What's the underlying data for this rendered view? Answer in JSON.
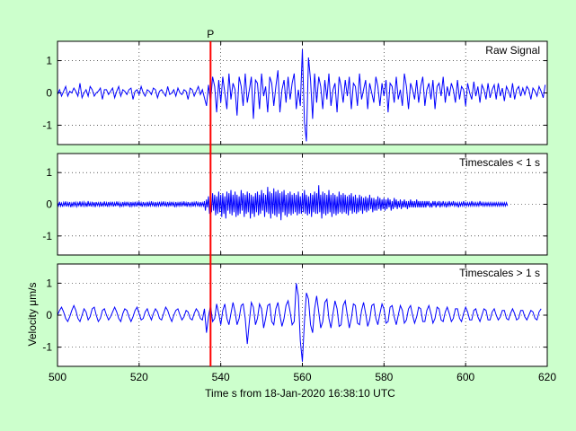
{
  "chart_data": {
    "type": "line",
    "figure_background": "#ccffcc",
    "trace_color": "#0000ff",
    "pick_color": "#ff0000",
    "grid": "dotted",
    "x_range": [
      500,
      620
    ],
    "x_ticks": [
      500,
      520,
      540,
      560,
      580,
      600,
      620
    ],
    "xlabel": "Time s from 18-Jan-2020 16:38:10 UTC",
    "ylabel": "Velocity μm/s",
    "pick": {
      "label": "P",
      "time": 537.5
    },
    "panels": [
      {
        "title": "Raw Signal",
        "y_range": [
          -1.6,
          1.6
        ],
        "y_ticks": [
          -1,
          0,
          1
        ],
        "sample_interval_s": 0.5,
        "series": [
          {
            "values": [
              -0.05,
              0.1,
              -0.1,
              0.05,
              0.2,
              -0.1,
              0.05,
              0.0,
              0.15,
              0.05,
              -0.1,
              0.3,
              -0.15,
              0.0,
              0.1,
              -0.1,
              0.2,
              0.1,
              -0.1,
              0.0,
              0.05,
              0.15,
              -0.2,
              0.1,
              0.1,
              -0.05,
              0.05,
              0.15,
              -0.15,
              0.05,
              0.2,
              -0.1,
              0.1,
              0.05,
              -0.05,
              0.1,
              0.15,
              -0.2,
              0.05,
              0.1,
              -0.05,
              0.2,
              0.0,
              -0.1,
              0.1,
              0.05,
              -0.05,
              0.15,
              0.1,
              -0.15,
              0.05,
              0.1,
              0.0,
              -0.1,
              0.2,
              -0.05,
              0.0,
              0.1,
              -0.1,
              0.15,
              0.0,
              -0.05,
              0.1,
              0.05,
              -0.2,
              0.15,
              0.1,
              -0.1,
              0.05,
              0.2,
              -0.05,
              0.1,
              -0.15,
              -0.4,
              0.25,
              -0.3,
              0.5,
              0.2,
              -0.6,
              0.4,
              -0.3,
              0.5,
              0.0,
              -0.5,
              0.6,
              -0.2,
              0.3,
              0.1,
              -0.7,
              0.5,
              0.2,
              -0.4,
              0.6,
              -0.3,
              0.1,
              0.5,
              -0.8,
              0.4,
              0.3,
              -0.5,
              0.6,
              -0.1,
              0.2,
              -0.6,
              0.5,
              0.3,
              -0.4,
              0.2,
              0.7,
              -0.6,
              0.1,
              0.4,
              -0.3,
              0.5,
              -0.2,
              0.3,
              0.6,
              -0.5,
              0.1,
              -0.4,
              1.35,
              -0.9,
              -1.5,
              1.1,
              0.4,
              -0.8,
              0.6,
              -0.3,
              0.5,
              0.2,
              -0.5,
              0.4,
              -0.2,
              0.6,
              -0.4,
              0.1,
              0.3,
              -0.6,
              0.5,
              0.2,
              -0.3,
              0.4,
              -0.1,
              0.5,
              -0.5,
              0.3,
              0.2,
              -0.4,
              0.6,
              -0.2,
              0.1,
              0.4,
              -0.5,
              0.3,
              0.0,
              -0.3,
              0.5,
              0.2,
              -0.4,
              0.3,
              -0.1,
              0.4,
              -0.6,
              0.3,
              0.2,
              -0.3,
              0.5,
              -0.2,
              0.1,
              -0.4,
              0.6,
              0.2,
              -0.5,
              0.3,
              0.1,
              -0.2,
              0.4,
              -0.3,
              0.2,
              0.5,
              -0.4,
              0.1,
              0.3,
              -0.2,
              0.4,
              -0.5,
              0.2,
              0.3,
              -0.1,
              0.5,
              -0.3,
              0.2,
              -0.1,
              0.3,
              0.1,
              -0.3,
              0.4,
              -0.2,
              0.2,
              0.1,
              -0.4,
              0.3,
              0.0,
              -0.2,
              0.35,
              -0.1,
              0.2,
              -0.3,
              0.25,
              0.1,
              -0.2,
              0.3,
              -0.15,
              0.1,
              0.25,
              -0.2,
              0.3,
              -0.1,
              0.15,
              -0.25,
              0.2,
              0.05,
              -0.15,
              0.3,
              -0.2,
              0.1,
              0.2,
              -0.1,
              0.15,
              -0.05,
              0.2,
              0.1,
              -0.2,
              0.15,
              0.05,
              -0.1,
              0.2,
              0.05,
              -0.15,
              0.25
            ]
          }
        ]
      },
      {
        "title": "Timescales < 1 s",
        "y_range": [
          -1.6,
          1.6
        ],
        "y_ticks": [
          -1,
          0,
          1
        ],
        "sample_interval_s": 0.25,
        "series": [
          {
            "values": [
              0.05,
              -0.05,
              0.08,
              -0.06,
              0.04,
              -0.08,
              0.06,
              -0.04,
              0.09,
              -0.07,
              0.05,
              -0.05,
              0.07,
              -0.09,
              0.04,
              -0.06,
              0.08,
              -0.05,
              0.06,
              -0.07,
              0.05,
              -0.04,
              0.09,
              -0.08,
              0.06,
              -0.05,
              0.07,
              -0.06,
              0.04,
              -0.08,
              0.1,
              -0.06,
              0.05,
              -0.07,
              0.08,
              -0.05,
              0.06,
              -0.09,
              0.07,
              -0.04,
              0.05,
              -0.06,
              0.08,
              -0.07,
              0.04,
              -0.05,
              0.09,
              -0.06,
              0.05,
              -0.08,
              0.07,
              -0.05,
              0.06,
              -0.04,
              0.08,
              -0.07,
              0.05,
              -0.06,
              0.09,
              -0.05,
              0.06,
              -0.07,
              0.04,
              -0.08,
              0.07,
              -0.05,
              0.06,
              -0.06,
              0.08,
              -0.04,
              0.05,
              -0.09,
              0.07,
              -0.06,
              0.05,
              -0.05,
              0.08,
              -0.07,
              0.06,
              -0.04,
              0.09,
              -0.06,
              0.05,
              -0.08,
              0.07,
              -0.05,
              0.04,
              -0.06,
              0.08,
              -0.07,
              0.06,
              -0.05,
              0.09,
              -0.04,
              0.05,
              -0.08,
              0.07,
              -0.06,
              0.05,
              -0.05,
              0.08,
              -0.07,
              0.06,
              -0.04,
              0.09,
              -0.06,
              0.05,
              -0.08,
              0.07,
              -0.05,
              0.06,
              -0.06,
              0.08,
              -0.04,
              0.05,
              -0.09,
              0.07,
              -0.06,
              0.05,
              -0.05,
              0.08,
              -0.07,
              0.06,
              -0.04,
              0.09,
              -0.06,
              0.05,
              -0.08,
              0.07,
              -0.05,
              0.04,
              -0.06,
              0.08,
              -0.07,
              0.06,
              -0.05,
              0.09,
              -0.04,
              0.05,
              -0.08,
              0.07,
              -0.06,
              0.05,
              -0.05,
              0.1,
              -0.2,
              0.15,
              -0.1,
              0.25,
              -0.3,
              0.2,
              -0.25,
              0.35,
              -0.2,
              0.3,
              -0.35,
              0.25,
              -0.3,
              0.4,
              -0.25,
              0.3,
              -0.4,
              0.35,
              -0.3,
              0.25,
              -0.45,
              0.4,
              -0.2,
              0.35,
              -0.3,
              0.45,
              -0.35,
              0.3,
              -0.25,
              0.4,
              -0.4,
              0.3,
              -0.35,
              0.25,
              -0.3,
              0.45,
              -0.2,
              0.35,
              -0.4,
              0.3,
              -0.3,
              0.4,
              -0.25,
              0.35,
              -0.45,
              0.3,
              -0.3,
              0.25,
              -0.4,
              0.35,
              -0.25,
              0.4,
              -0.35,
              0.3,
              -0.3,
              0.45,
              -0.2,
              0.35,
              -0.4,
              0.3,
              -0.25,
              0.55,
              -0.3,
              0.4,
              -0.45,
              0.35,
              -0.3,
              0.5,
              -0.35,
              0.4,
              -0.4,
              0.45,
              -0.3,
              0.35,
              -0.5,
              0.4,
              -0.25,
              0.45,
              -0.35,
              0.3,
              -0.4,
              0.35,
              -0.3,
              0.4,
              -0.35,
              0.3,
              -0.3,
              0.35,
              -0.25,
              0.3,
              -0.35,
              0.4,
              -0.3,
              0.25,
              -0.3,
              0.35,
              -0.25,
              0.45,
              -0.3,
              0.3,
              -0.35,
              0.25,
              -0.3,
              0.35,
              -0.4,
              0.3,
              -0.25,
              0.4,
              -0.3,
              0.35,
              -0.3,
              0.6,
              -0.25,
              0.3,
              -0.45,
              0.4,
              -0.3,
              0.35,
              -0.35,
              0.3,
              -0.3,
              0.45,
              -0.25,
              0.3,
              -0.4,
              0.35,
              -0.3,
              0.3,
              -0.35,
              0.25,
              -0.3,
              0.4,
              -0.25,
              0.3,
              -0.3,
              0.35,
              -0.25,
              0.3,
              -0.3,
              0.25,
              -0.35,
              0.3,
              -0.2,
              0.35,
              -0.3,
              0.25,
              -0.25,
              0.3,
              -0.3,
              0.2,
              -0.25,
              0.3,
              -0.2,
              0.25,
              -0.3,
              0.2,
              -0.2,
              0.25,
              -0.25,
              0.2,
              -0.2,
              0.3,
              -0.15,
              0.2,
              -0.25,
              0.2,
              -0.2,
              0.15,
              -0.2,
              0.25,
              -0.15,
              0.2,
              -0.2,
              0.15,
              -0.15,
              0.2,
              -0.2,
              0.15,
              -0.15,
              0.2,
              -0.1,
              0.15,
              -0.2,
              0.1,
              -0.15,
              0.2,
              -0.1,
              0.15,
              -0.15,
              0.1,
              -0.1,
              0.15,
              -0.15,
              0.1,
              -0.1,
              0.15,
              -0.1,
              0.1,
              -0.15,
              0.1,
              -0.1,
              0.15,
              -0.1,
              0.1,
              -0.1,
              0.1,
              -0.1,
              0.15,
              -0.1,
              0.1,
              -0.1,
              0.1,
              -0.1,
              0.1,
              -0.1,
              0.1,
              -0.1,
              0.1,
              -0.05,
              0.1,
              -0.1,
              0.05,
              -0.1,
              0.1,
              -0.05,
              0.1,
              -0.1,
              0.05,
              -0.05,
              0.1,
              -0.1,
              0.05,
              -0.05,
              0.1,
              -0.05,
              0.05,
              -0.1,
              0.05,
              -0.05,
              0.1,
              -0.05,
              0.05,
              -0.05,
              0.1,
              -0.05,
              0.05,
              -0.05,
              0.05,
              -0.1,
              0.05,
              -0.05,
              0.05,
              -0.05,
              0.1,
              -0.05,
              0.05,
              -0.05,
              0.05,
              -0.05,
              0.05,
              -0.05,
              0.1,
              -0.05,
              0.05,
              -0.05,
              0.05,
              -0.05,
              0.05,
              -0.05,
              0.1,
              -0.05,
              0.05,
              -0.05,
              0.05,
              -0.05,
              0.05,
              -0.05,
              0.05,
              -0.05,
              0.05,
              -0.05,
              0.05,
              -0.05,
              0.05,
              -0.05,
              0.05,
              -0.05,
              0.05,
              -0.05,
              0.05,
              -0.05,
              0.05,
              -0.05,
              0.05,
              -0.05,
              0.05,
              -0.05
            ]
          }
        ]
      },
      {
        "title": "Timescales > 1 s",
        "y_range": [
          -1.6,
          1.6
        ],
        "y_ticks": [
          -1,
          0,
          1
        ],
        "sample_interval_s": 0.5,
        "series": [
          {
            "values": [
              0.0,
              0.15,
              0.25,
              0.1,
              -0.1,
              -0.2,
              -0.05,
              0.15,
              0.3,
              0.15,
              -0.1,
              -0.2,
              0.0,
              0.2,
              0.1,
              -0.15,
              -0.05,
              0.2,
              0.25,
              0.0,
              -0.2,
              -0.1,
              0.15,
              0.2,
              0.0,
              -0.15,
              -0.05,
              0.1,
              0.25,
              0.1,
              -0.1,
              -0.2,
              0.05,
              0.2,
              0.15,
              -0.05,
              -0.2,
              -0.05,
              0.15,
              0.25,
              0.05,
              -0.15,
              -0.1,
              0.1,
              0.2,
              0.0,
              -0.15,
              0.05,
              0.2,
              0.1,
              -0.1,
              -0.15,
              0.05,
              0.25,
              0.15,
              -0.05,
              -0.2,
              0.0,
              0.15,
              0.2,
              0.0,
              -0.15,
              -0.05,
              0.15,
              0.1,
              -0.1,
              -0.15,
              0.05,
              0.2,
              0.1,
              -0.1,
              -0.15,
              0.2,
              -0.55,
              -0.05,
              0.3,
              -0.2,
              -0.1,
              0.35,
              0.05,
              -0.3,
              0.15,
              0.35,
              -0.1,
              -0.3,
              0.05,
              0.4,
              0.1,
              -0.3,
              -0.1,
              0.3,
              0.35,
              -0.1,
              -0.9,
              -0.2,
              0.4,
              0.25,
              -0.3,
              -0.1,
              0.35,
              0.2,
              -0.4,
              -0.1,
              0.3,
              0.35,
              -0.2,
              -0.3,
              0.2,
              0.4,
              0.0,
              -0.35,
              -0.1,
              0.3,
              0.45,
              0.1,
              -0.3,
              -0.2,
              1.0,
              0.6,
              -0.8,
              -1.45,
              -0.2,
              0.7,
              0.5,
              -0.3,
              -0.55,
              0.2,
              0.6,
              0.1,
              -0.4,
              -0.2,
              0.4,
              0.5,
              -0.1,
              -0.4,
              0.05,
              0.45,
              0.2,
              -0.35,
              -0.3,
              0.3,
              0.45,
              0.0,
              -0.4,
              -0.1,
              0.35,
              0.3,
              -0.25,
              -0.3,
              0.15,
              0.4,
              0.05,
              -0.35,
              -0.15,
              0.3,
              0.35,
              -0.1,
              -0.3,
              0.05,
              0.35,
              0.2,
              -0.25,
              -0.2,
              0.25,
              0.3,
              -0.05,
              -0.3,
              0.0,
              0.3,
              0.15,
              -0.25,
              -0.15,
              0.2,
              0.3,
              0.0,
              -0.25,
              -0.05,
              0.25,
              0.2,
              -0.2,
              -0.2,
              0.15,
              0.3,
              0.05,
              -0.25,
              -0.1,
              0.25,
              0.2,
              -0.15,
              -0.2,
              0.1,
              0.25,
              0.05,
              -0.2,
              -0.1,
              0.2,
              0.2,
              -0.1,
              -0.2,
              0.05,
              0.25,
              0.1,
              -0.15,
              -0.15,
              0.15,
              0.2,
              -0.05,
              -0.2,
              0.0,
              0.2,
              0.15,
              -0.15,
              -0.15,
              0.1,
              0.2,
              0.0,
              -0.15,
              -0.05,
              0.15,
              0.15,
              -0.1,
              -0.15,
              0.05,
              0.2,
              0.05,
              -0.15,
              -0.1,
              0.15,
              0.15,
              -0.05,
              -0.15,
              0.0,
              0.15,
              0.1,
              -0.1,
              -0.15,
              0.1,
              0.2
            ]
          }
        ]
      }
    ]
  }
}
